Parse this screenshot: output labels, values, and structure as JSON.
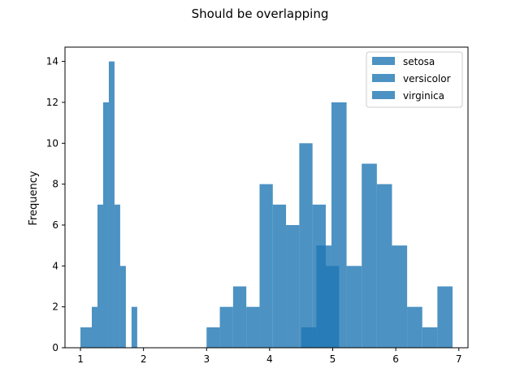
{
  "chart_data": {
    "type": "bar",
    "title": "Should be overlapping",
    "xlabel": "",
    "ylabel": "Frequency",
    "xlim": [
      0.755,
      7.145
    ],
    "ylim": [
      0,
      14.7
    ],
    "xticks": [
      1,
      2,
      3,
      4,
      5,
      6,
      7
    ],
    "yticks": [
      0,
      2,
      4,
      6,
      8,
      10,
      12,
      14
    ],
    "grid": false,
    "legend_position": "top-right",
    "series_color": "#1f77b4",
    "series_opacity": 0.8,
    "series": [
      {
        "name": "setosa",
        "bins": [
          {
            "x0": 1.0,
            "x1": 1.09,
            "count": 1
          },
          {
            "x0": 1.09,
            "x1": 1.18,
            "count": 1
          },
          {
            "x0": 1.18,
            "x1": 1.27,
            "count": 2
          },
          {
            "x0": 1.27,
            "x1": 1.36,
            "count": 7
          },
          {
            "x0": 1.36,
            "x1": 1.45,
            "count": 12
          },
          {
            "x0": 1.45,
            "x1": 1.54,
            "count": 14
          },
          {
            "x0": 1.54,
            "x1": 1.63,
            "count": 7
          },
          {
            "x0": 1.63,
            "x1": 1.72,
            "count": 4
          },
          {
            "x0": 1.81,
            "x1": 1.9,
            "count": 2
          }
        ]
      },
      {
        "name": "versicolor",
        "bins": [
          {
            "x0": 3.0,
            "x1": 3.21,
            "count": 1
          },
          {
            "x0": 3.21,
            "x1": 3.42,
            "count": 2
          },
          {
            "x0": 3.42,
            "x1": 3.63,
            "count": 3
          },
          {
            "x0": 3.63,
            "x1": 3.84,
            "count": 2
          },
          {
            "x0": 3.84,
            "x1": 4.05,
            "count": 8
          },
          {
            "x0": 4.05,
            "x1": 4.26,
            "count": 7
          },
          {
            "x0": 4.26,
            "x1": 4.47,
            "count": 6
          },
          {
            "x0": 4.47,
            "x1": 4.68,
            "count": 10
          },
          {
            "x0": 4.68,
            "x1": 4.89,
            "count": 7
          },
          {
            "x0": 4.89,
            "x1": 5.1,
            "count": 4
          }
        ]
      },
      {
        "name": "virginica",
        "bins": [
          {
            "x0": 4.5,
            "x1": 4.74,
            "count": 1
          },
          {
            "x0": 4.74,
            "x1": 4.98,
            "count": 5
          },
          {
            "x0": 4.98,
            "x1": 5.22,
            "count": 12
          },
          {
            "x0": 5.22,
            "x1": 5.46,
            "count": 4
          },
          {
            "x0": 5.46,
            "x1": 5.7,
            "count": 9
          },
          {
            "x0": 5.7,
            "x1": 5.94,
            "count": 8
          },
          {
            "x0": 5.94,
            "x1": 6.18,
            "count": 5
          },
          {
            "x0": 6.18,
            "x1": 6.42,
            "count": 2
          },
          {
            "x0": 6.42,
            "x1": 6.66,
            "count": 1
          },
          {
            "x0": 6.66,
            "x1": 6.9,
            "count": 3
          }
        ]
      }
    ]
  }
}
